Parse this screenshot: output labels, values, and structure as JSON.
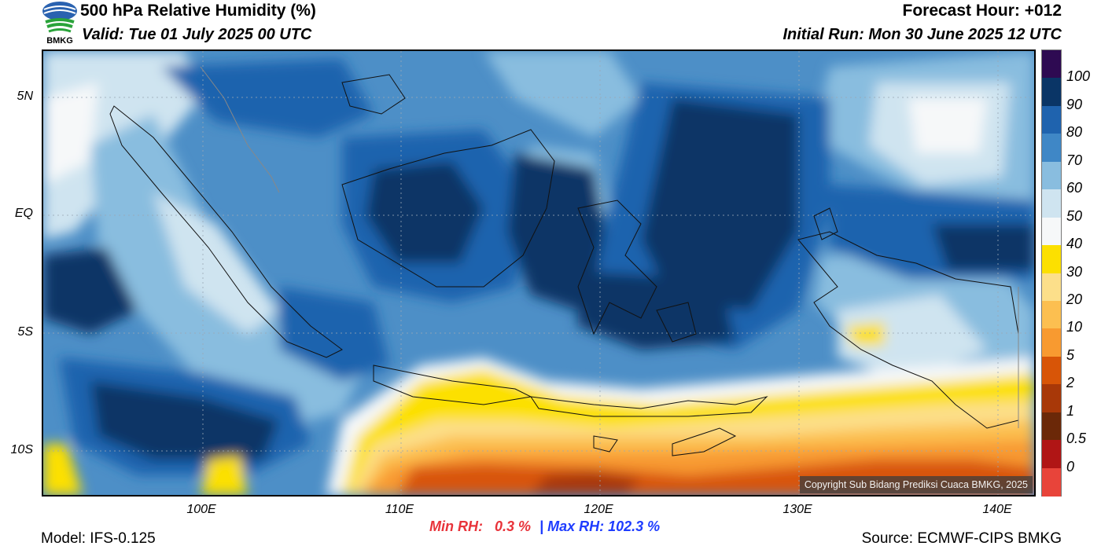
{
  "header": {
    "title": "500 hPa Relative Humidity (%)",
    "valid": "Valid: Tue 01 July 2025 00 UTC",
    "forecast_hour": "Forecast Hour: +012",
    "initial_run": "Initial Run: Mon 30 June 2025 12 UTC",
    "logo_text": "BMKG"
  },
  "axes": {
    "lat_labels": [
      "5N",
      "EQ",
      "5S",
      "10S"
    ],
    "lon_labels": [
      "100E",
      "110E",
      "120E",
      "130E",
      "140E"
    ]
  },
  "colorbar": {
    "labels": [
      "100",
      "90",
      "80",
      "70",
      "60",
      "50",
      "40",
      "30",
      "20",
      "10",
      "5",
      "2",
      "1",
      "0.5",
      "0"
    ],
    "colors": [
      "#2e0a52",
      "#0a3566",
      "#1f63ae",
      "#3f87c6",
      "#89bddf",
      "#cfe4f0",
      "#f6f8f9",
      "#fce000",
      "#fcdf8a",
      "#fcbf50",
      "#f89a30",
      "#d85507",
      "#a83808",
      "#6b2808",
      "#b01515",
      "#e8443a"
    ]
  },
  "stats": {
    "min_label": "Min RH:",
    "min_value": "0.3 %",
    "separator": "|",
    "max_label": "Max RH:",
    "max_value": "102.3 %"
  },
  "footer": {
    "model": "Model: IFS-0.125",
    "source": "Source: ECMWF-CIPS BMKG",
    "copyright": "Copyright Sub Bidang Prediksi Cuaca BMKG, 2025"
  }
}
